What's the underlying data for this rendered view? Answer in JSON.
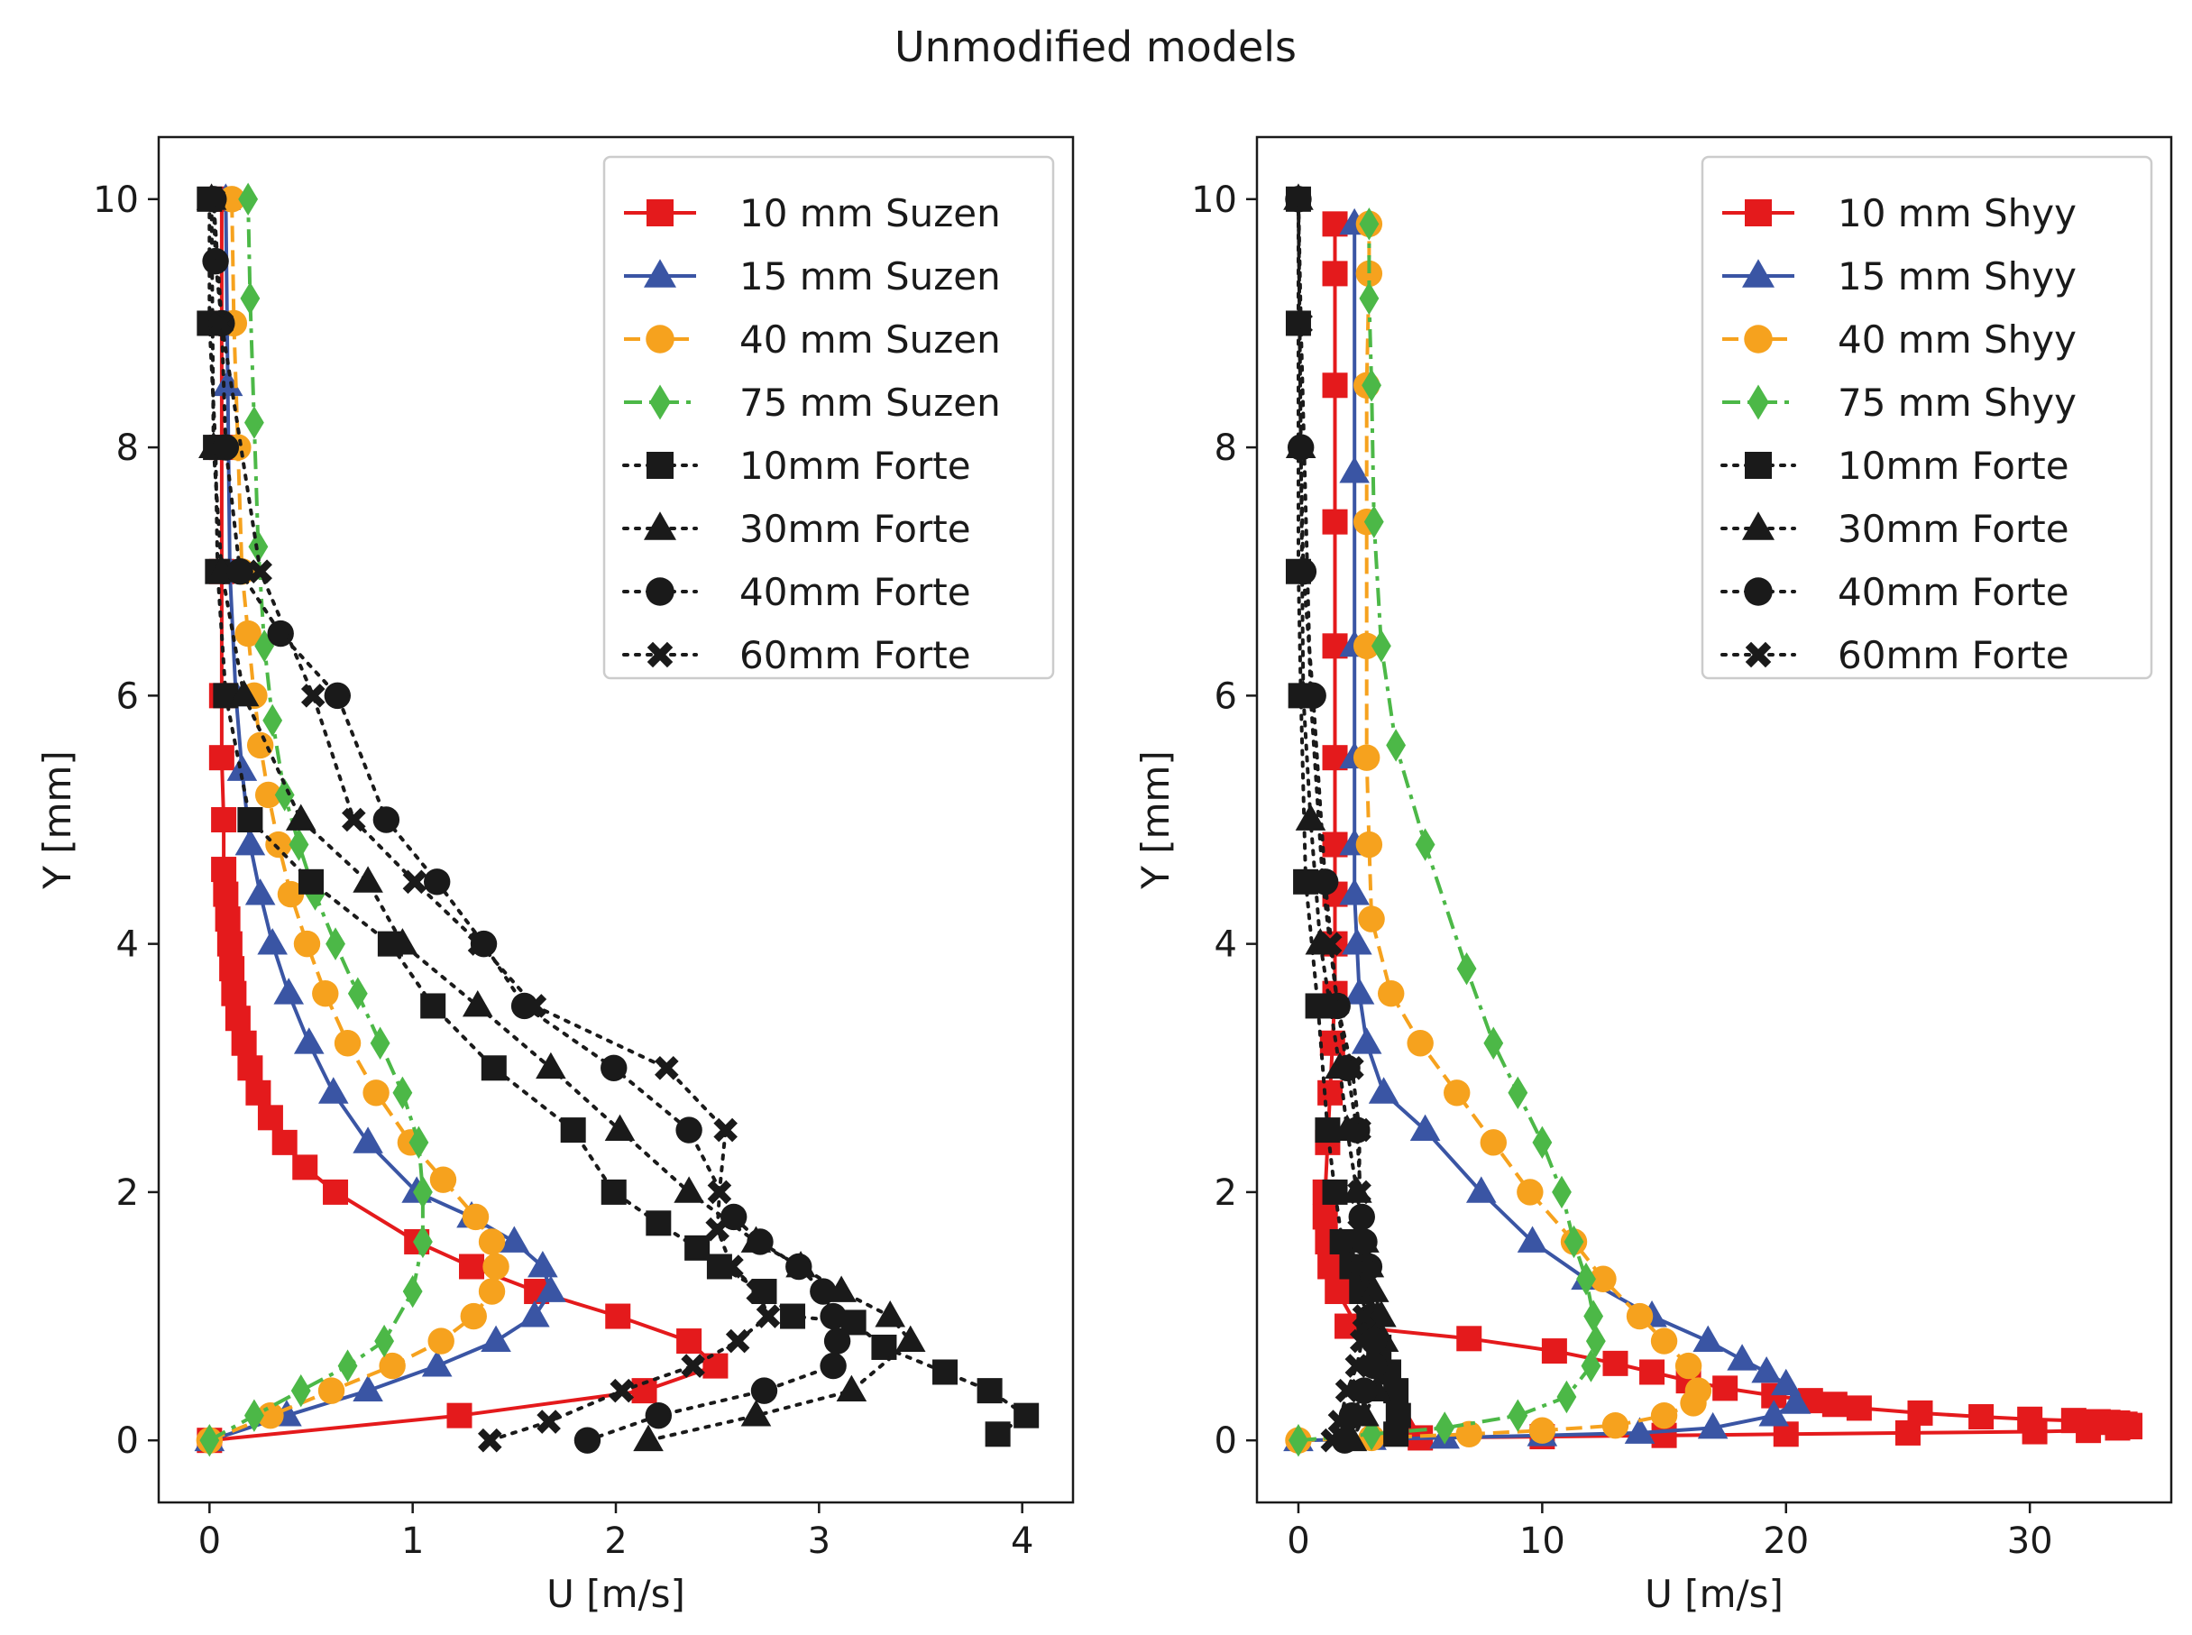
{
  "figure_title": "Unmodified models",
  "chart_data": [
    {
      "type": "line",
      "panel": "left",
      "xlabel": "U [m/s]",
      "ylabel": "Y [mm]",
      "xlim": [
        -0.25,
        4.25
      ],
      "ylim": [
        -0.5,
        10.5
      ],
      "xticks": [
        0,
        1,
        2,
        3,
        4
      ],
      "yticks": [
        0,
        2,
        4,
        6,
        8,
        10
      ],
      "legend_position": "top-right",
      "series": [
        {
          "name": "10 mm Suzen",
          "color": "#e41a1c",
          "marker": "square",
          "line": "solid",
          "x": [
            0,
            1.23,
            2.14,
            2.49,
            2.36,
            2.01,
            1.61,
            1.29,
            1.02,
            0.62,
            0.47,
            0.37,
            0.3,
            0.24,
            0.2,
            0.17,
            0.14,
            0.12,
            0.11,
            0.1,
            0.09,
            0.08,
            0.07,
            0.07,
            0.06,
            0.06,
            0.06,
            0.06,
            0.06,
            0.06
          ],
          "y": [
            0,
            0.2,
            0.4,
            0.6,
            0.8,
            1.0,
            1.2,
            1.4,
            1.6,
            2.0,
            2.2,
            2.4,
            2.6,
            2.8,
            3.0,
            3.2,
            3.4,
            3.6,
            3.8,
            4.0,
            4.2,
            4.4,
            4.6,
            5.0,
            5.5,
            6.0,
            7.0,
            8.0,
            9.0,
            10.0
          ]
        },
        {
          "name": "15 mm Suzen",
          "color": "#3a55a4",
          "marker": "triangle",
          "line": "solid",
          "x": [
            0,
            0.38,
            0.78,
            1.12,
            1.41,
            1.6,
            1.68,
            1.64,
            1.5,
            1.29,
            1.02,
            0.78,
            0.61,
            0.49,
            0.39,
            0.31,
            0.25,
            0.2,
            0.16,
            0.13,
            0.1,
            0.09,
            0.08
          ],
          "y": [
            0,
            0.2,
            0.4,
            0.6,
            0.8,
            1.0,
            1.2,
            1.4,
            1.6,
            1.8,
            2.0,
            2.4,
            2.8,
            3.2,
            3.6,
            4.0,
            4.4,
            4.8,
            5.4,
            6.0,
            7.0,
            8.5,
            10.0
          ]
        },
        {
          "name": "40 mm Suzen",
          "color": "#f6a21e",
          "marker": "circle",
          "line": "dashed",
          "x": [
            0,
            0.3,
            0.6,
            0.9,
            1.14,
            1.3,
            1.39,
            1.41,
            1.39,
            1.31,
            1.15,
            0.99,
            0.82,
            0.68,
            0.57,
            0.48,
            0.4,
            0.34,
            0.29,
            0.25,
            0.22,
            0.19,
            0.16,
            0.14,
            0.12,
            0.11
          ],
          "y": [
            0,
            0.2,
            0.4,
            0.6,
            0.8,
            1.0,
            1.2,
            1.4,
            1.6,
            1.8,
            2.1,
            2.4,
            2.8,
            3.2,
            3.6,
            4.0,
            4.4,
            4.8,
            5.2,
            5.6,
            6.0,
            6.5,
            7.0,
            8.0,
            9.0,
            10.0
          ]
        },
        {
          "name": "75 mm Suzen",
          "color": "#4cb847",
          "marker": "diamond",
          "line": "dashdot",
          "x": [
            0,
            0.22,
            0.45,
            0.68,
            0.86,
            1.0,
            1.05,
            1.05,
            1.03,
            0.95,
            0.84,
            0.73,
            0.62,
            0.52,
            0.44,
            0.37,
            0.31,
            0.27,
            0.24,
            0.22,
            0.2,
            0.19
          ],
          "y": [
            0,
            0.2,
            0.4,
            0.6,
            0.8,
            1.2,
            1.6,
            2.0,
            2.4,
            2.8,
            3.2,
            3.6,
            4.0,
            4.4,
            4.8,
            5.2,
            5.8,
            6.4,
            7.2,
            8.2,
            9.2,
            10.0
          ]
        },
        {
          "name": "10mm Forte",
          "color": "#1a1a1a",
          "marker": "square",
          "line": "dotted",
          "x": [
            3.88,
            4.02,
            3.84,
            3.62,
            3.32,
            3.17,
            2.87,
            2.73,
            2.51,
            2.4,
            2.21,
            1.99,
            1.79,
            1.4,
            1.1,
            0.89,
            0.5,
            0.2,
            0.08,
            0.04,
            0.03,
            0.0,
            0.0
          ],
          "y": [
            0.05,
            0.2,
            0.4,
            0.55,
            0.75,
            0.95,
            1.0,
            1.2,
            1.4,
            1.55,
            1.75,
            2.0,
            2.5,
            3.0,
            3.5,
            4.0,
            4.5,
            5.0,
            6.0,
            7.0,
            8.0,
            9.0,
            10.0
          ]
        },
        {
          "name": "30mm Forte",
          "color": "#1a1a1a",
          "marker": "triangle",
          "line": "dotted",
          "x": [
            2.16,
            2.69,
            3.16,
            3.45,
            3.35,
            3.11,
            2.91,
            2.69,
            2.36,
            2.02,
            1.68,
            1.32,
            0.95,
            0.78,
            0.45,
            0.17,
            0.06,
            0.02,
            0.01
          ],
          "y": [
            0,
            0.2,
            0.4,
            0.8,
            1.0,
            1.2,
            1.4,
            1.6,
            2.0,
            2.5,
            3.0,
            3.5,
            4.0,
            4.5,
            5.0,
            6.0,
            7.0,
            8.0,
            10.0
          ]
        },
        {
          "name": "40mm Forte",
          "color": "#1a1a1a",
          "marker": "circle",
          "line": "dotted",
          "x": [
            1.86,
            2.21,
            2.73,
            3.07,
            3.09,
            3.07,
            3.02,
            2.9,
            2.71,
            2.58,
            2.36,
            1.99,
            1.55,
            1.35,
            1.12,
            0.87,
            0.63,
            0.35,
            0.15,
            0.08,
            0.06,
            0.03,
            0.02
          ],
          "y": [
            0,
            0.2,
            0.4,
            0.6,
            0.8,
            1.0,
            1.2,
            1.4,
            1.6,
            1.8,
            2.5,
            3.0,
            3.5,
            4.0,
            4.5,
            5.0,
            6.0,
            6.5,
            7.0,
            8.0,
            9.0,
            9.5,
            10.0
          ]
        },
        {
          "name": "60mm Forte",
          "color": "#1a1a1a",
          "marker": "x",
          "line": "dotted",
          "x": [
            1.38,
            1.67,
            2.03,
            2.38,
            2.6,
            2.75,
            2.7,
            2.57,
            2.5,
            2.51,
            2.54,
            2.25,
            1.6,
            1.33,
            1.01,
            0.71,
            0.51,
            0.25,
            0.06,
            0.02
          ],
          "y": [
            0.0,
            0.15,
            0.4,
            0.6,
            0.8,
            1.0,
            1.2,
            1.4,
            1.7,
            2.0,
            2.5,
            3.0,
            3.5,
            4.0,
            4.5,
            5.0,
            6.0,
            7.0,
            9.0,
            10.0
          ]
        }
      ]
    },
    {
      "type": "line",
      "panel": "right",
      "xlabel": "U [m/s]",
      "ylabel": "Y [mm]",
      "xlim": [
        -1.7,
        35.8
      ],
      "ylim": [
        -0.5,
        10.5
      ],
      "xticks": [
        0,
        10,
        20,
        30
      ],
      "yticks": [
        0,
        2,
        4,
        6,
        8,
        10
      ],
      "legend_position": "top-right",
      "series": [
        {
          "name": "10 mm Shyy",
          "color": "#e41a1c",
          "marker": "square",
          "line": "solid",
          "x": [
            2.0,
            7.0,
            10.5,
            13.0,
            14.5,
            16.0,
            17.5,
            19.5,
            21.0,
            22.0,
            23.0,
            25.5,
            28.0,
            30.0,
            31.8,
            32.8,
            33.2,
            33.6,
            33.9,
            34.1,
            34.1,
            33.6,
            32.4,
            30.2,
            25.0,
            20.0,
            15.0,
            10.0,
            5.0,
            1.6,
            1.3,
            1.2,
            1.1,
            1.1,
            1.2,
            1.3,
            1.4,
            1.5,
            1.5,
            1.5,
            1.5,
            1.5,
            1.5,
            1.5,
            1.5,
            1.5,
            1.5
          ],
          "y": [
            0.92,
            0.82,
            0.72,
            0.62,
            0.55,
            0.48,
            0.42,
            0.36,
            0.32,
            0.29,
            0.26,
            0.22,
            0.19,
            0.17,
            0.16,
            0.15,
            0.145,
            0.14,
            0.13,
            0.12,
            0.11,
            0.1,
            0.08,
            0.07,
            0.06,
            0.05,
            0.04,
            0.03,
            0.02,
            1.2,
            1.4,
            1.6,
            1.8,
            2.0,
            2.4,
            2.8,
            3.2,
            3.6,
            4.0,
            4.4,
            4.8,
            5.5,
            6.4,
            7.4,
            8.5,
            9.4,
            9.8
          ]
        },
        {
          "name": "15 mm Shyy",
          "color": "#3a55a4",
          "marker": "triangle",
          "line": "solid",
          "x": [
            0,
            3,
            6,
            10,
            14,
            17,
            19.5,
            20.4,
            20.0,
            19.2,
            18.2,
            16.8,
            14.5,
            11.8,
            9.6,
            7.5,
            5.2,
            3.5,
            2.8,
            2.5,
            2.4,
            2.3,
            2.3,
            2.3,
            2.3,
            2.3,
            2.3
          ],
          "y": [
            0,
            0.01,
            0.02,
            0.04,
            0.06,
            0.1,
            0.2,
            0.3,
            0.45,
            0.55,
            0.65,
            0.8,
            1.0,
            1.3,
            1.6,
            2.0,
            2.5,
            2.8,
            3.2,
            3.6,
            4.0,
            4.4,
            4.8,
            5.5,
            6.4,
            7.8,
            9.8
          ]
        },
        {
          "name": "40 mm Shyy",
          "color": "#f6a21e",
          "marker": "circle",
          "line": "dashed",
          "x": [
            0,
            3,
            7,
            10,
            13,
            15,
            16.2,
            16.4,
            16.0,
            15.0,
            14.0,
            12.5,
            11.3,
            9.5,
            8.0,
            6.5,
            5.0,
            3.8,
            3.0,
            2.9,
            2.8,
            2.8,
            2.8,
            2.8,
            2.9,
            2.9
          ],
          "y": [
            0,
            0.02,
            0.05,
            0.08,
            0.12,
            0.2,
            0.3,
            0.4,
            0.6,
            0.8,
            1.0,
            1.3,
            1.6,
            2.0,
            2.4,
            2.8,
            3.2,
            3.6,
            4.2,
            4.8,
            5.5,
            6.4,
            7.4,
            8.5,
            9.4,
            9.8
          ]
        },
        {
          "name": "75 mm Shyy",
          "color": "#4cb847",
          "marker": "diamond",
          "line": "dashdot",
          "x": [
            0,
            3,
            6,
            9,
            11,
            12,
            12.2,
            12.1,
            11.8,
            11.3,
            10.8,
            10.0,
            9.0,
            8.0,
            6.9,
            5.2,
            4.0,
            3.4,
            3.1,
            3.0,
            2.9,
            2.9
          ],
          "y": [
            0,
            0.05,
            0.1,
            0.2,
            0.35,
            0.6,
            0.8,
            1.0,
            1.3,
            1.6,
            2.0,
            2.4,
            2.8,
            3.2,
            3.8,
            4.8,
            5.6,
            6.4,
            7.4,
            8.5,
            9.2,
            9.8
          ]
        },
        {
          "name": "10mm Forte",
          "color": "#1a1a1a",
          "marker": "square",
          "line": "dotted",
          "x": [
            4.0,
            4.1,
            4.0,
            3.7,
            3.3,
            2.9,
            2.6,
            2.2,
            1.8,
            1.5,
            1.2,
            0.8,
            0.3,
            0.1,
            0.0,
            0.0,
            0.0
          ],
          "y": [
            0.05,
            0.2,
            0.4,
            0.55,
            0.75,
            0.95,
            1.2,
            1.4,
            1.6,
            2.0,
            2.5,
            3.5,
            4.5,
            6.0,
            7.0,
            9.0,
            10.0
          ]
        },
        {
          "name": "30mm Forte",
          "color": "#1a1a1a",
          "marker": "triangle",
          "line": "dotted",
          "x": [
            2.2,
            2.7,
            3.2,
            3.5,
            3.4,
            3.1,
            2.9,
            2.7,
            2.4,
            2.0,
            1.7,
            1.3,
            0.9,
            0.5,
            0.2,
            0.1,
            0.0
          ],
          "y": [
            0,
            0.2,
            0.4,
            0.8,
            1.0,
            1.2,
            1.4,
            1.6,
            2.0,
            2.5,
            3.0,
            3.5,
            4.0,
            5.0,
            6.0,
            8.0,
            10.0
          ]
        },
        {
          "name": "40mm Forte",
          "color": "#1a1a1a",
          "marker": "circle",
          "line": "dotted",
          "x": [
            1.9,
            2.2,
            2.7,
            3.1,
            3.1,
            3.0,
            2.9,
            2.7,
            2.6,
            2.4,
            2.0,
            1.6,
            1.1,
            0.6,
            0.2,
            0.1,
            0.0
          ],
          "y": [
            0,
            0.2,
            0.4,
            0.6,
            0.8,
            1.0,
            1.4,
            1.6,
            1.8,
            2.5,
            3.0,
            3.5,
            4.5,
            6.0,
            7.0,
            8.0,
            10.0
          ]
        },
        {
          "name": "60mm Forte",
          "color": "#1a1a1a",
          "marker": "x",
          "line": "dotted",
          "x": [
            1.4,
            1.7,
            2.0,
            2.4,
            2.6,
            2.7,
            2.6,
            2.5,
            2.5,
            2.5,
            2.2,
            1.6,
            1.3,
            1.0,
            0.5,
            0.1,
            0.0
          ],
          "y": [
            0.0,
            0.15,
            0.4,
            0.6,
            0.8,
            1.0,
            1.4,
            1.7,
            2.0,
            2.5,
            3.0,
            3.5,
            4.0,
            4.5,
            6.0,
            9.0,
            10.0
          ]
        }
      ]
    }
  ]
}
